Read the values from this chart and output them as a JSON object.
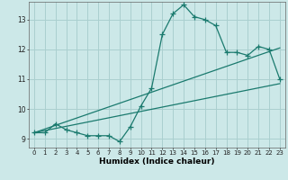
{
  "xlabel": "Humidex (Indice chaleur)",
  "ylabel": "",
  "bg_color": "#cce8e8",
  "line_color": "#1a7a6e",
  "grid_color": "#aacfcf",
  "xlim": [
    -0.5,
    23.5
  ],
  "ylim": [
    8.7,
    13.6
  ],
  "xticks": [
    0,
    1,
    2,
    3,
    4,
    5,
    6,
    7,
    8,
    9,
    10,
    11,
    12,
    13,
    14,
    15,
    16,
    17,
    18,
    19,
    20,
    21,
    22,
    23
  ],
  "yticks": [
    9,
    10,
    11,
    12,
    13
  ],
  "data_x": [
    0,
    1,
    2,
    3,
    4,
    5,
    6,
    7,
    8,
    9,
    10,
    11,
    12,
    13,
    14,
    15,
    16,
    17,
    18,
    19,
    20,
    21,
    22,
    23
  ],
  "data_y": [
    9.2,
    9.2,
    9.5,
    9.3,
    9.2,
    9.1,
    9.1,
    9.1,
    8.9,
    9.4,
    10.1,
    10.7,
    12.5,
    13.2,
    13.5,
    13.1,
    13.0,
    12.8,
    11.9,
    11.9,
    11.8,
    12.1,
    12.0,
    11.0
  ],
  "line1_x": [
    0,
    23
  ],
  "line1_y": [
    9.2,
    10.85
  ],
  "line2_x": [
    0,
    23
  ],
  "line2_y": [
    9.2,
    12.05
  ],
  "marker_size": 4,
  "tick_fontsize": 5,
  "xlabel_fontsize": 6.5
}
